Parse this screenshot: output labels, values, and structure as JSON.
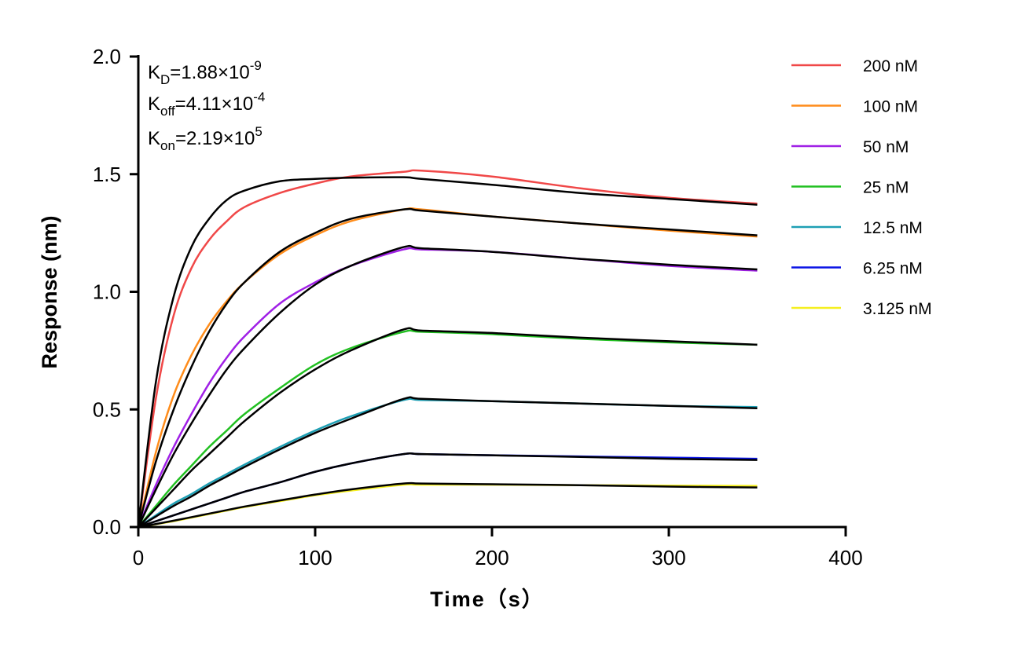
{
  "chart_data": {
    "type": "line",
    "title": "",
    "xlabel": "Time（s）",
    "ylabel": "Response (nm)",
    "xlim": [
      0,
      400
    ],
    "ylim": [
      0,
      2.0
    ],
    "xticks": [
      0,
      100,
      200,
      300,
      400
    ],
    "xtick_labels": [
      "0",
      "100",
      "200",
      "300",
      "400"
    ],
    "yticks": [
      0,
      0.5,
      1.0,
      1.5,
      2.0
    ],
    "ytick_labels": [
      "0.0",
      "0.5",
      "1.0",
      "1.5",
      "2.0"
    ],
    "grid": false,
    "legend_placement": "top-right",
    "fit_color": "#000000",
    "annotations": {
      "kd": {
        "base": "K",
        "sub": "D",
        "text": "=1.88×10",
        "sup": "-9"
      },
      "koff": {
        "base": "K",
        "sub": "off",
        "text": "=4.11×10",
        "sup": "-4"
      },
      "kon": {
        "base": "K",
        "sub": "on",
        "text": "=2.19×10",
        "sup": "5"
      }
    },
    "x": [
      0,
      10,
      20,
      30,
      40,
      50,
      60,
      80,
      100,
      120,
      150,
      160,
      200,
      250,
      300,
      350
    ],
    "series": [
      {
        "name": "200 nM",
        "color": "#f04848",
        "values": [
          0,
          0.55,
          0.9,
          1.1,
          1.22,
          1.3,
          1.36,
          1.42,
          1.46,
          1.49,
          1.51,
          1.515,
          1.49,
          1.44,
          1.4,
          1.375
        ],
        "fit": [
          0,
          0.62,
          0.98,
          1.19,
          1.31,
          1.39,
          1.43,
          1.47,
          1.48,
          1.485,
          1.487,
          1.48,
          1.455,
          1.42,
          1.395,
          1.37
        ]
      },
      {
        "name": "100 nM",
        "color": "#ff8c1a",
        "values": [
          0,
          0.32,
          0.56,
          0.73,
          0.86,
          0.96,
          1.04,
          1.16,
          1.24,
          1.3,
          1.35,
          1.35,
          1.32,
          1.29,
          1.26,
          1.235
        ],
        "fit": [
          0,
          0.28,
          0.5,
          0.68,
          0.83,
          0.95,
          1.04,
          1.17,
          1.25,
          1.31,
          1.35,
          1.345,
          1.32,
          1.29,
          1.265,
          1.24
        ]
      },
      {
        "name": "50 nM",
        "color": "#a020e6",
        "values": [
          0,
          0.18,
          0.34,
          0.48,
          0.61,
          0.72,
          0.81,
          0.95,
          1.04,
          1.11,
          1.18,
          1.18,
          1.17,
          1.14,
          1.11,
          1.09
        ],
        "fit": [
          0,
          0.16,
          0.31,
          0.44,
          0.56,
          0.67,
          0.76,
          0.91,
          1.03,
          1.11,
          1.19,
          1.185,
          1.17,
          1.14,
          1.115,
          1.095
        ]
      },
      {
        "name": "25 nM",
        "color": "#22c022",
        "values": [
          0,
          0.09,
          0.18,
          0.26,
          0.34,
          0.41,
          0.48,
          0.59,
          0.69,
          0.76,
          0.83,
          0.83,
          0.82,
          0.8,
          0.785,
          0.775
        ],
        "fit": [
          0,
          0.08,
          0.16,
          0.24,
          0.31,
          0.38,
          0.45,
          0.57,
          0.67,
          0.75,
          0.84,
          0.835,
          0.825,
          0.805,
          0.79,
          0.775
        ]
      },
      {
        "name": "12.5 nM",
        "color": "#1e9fb4",
        "values": [
          0,
          0.05,
          0.1,
          0.14,
          0.185,
          0.225,
          0.265,
          0.34,
          0.41,
          0.47,
          0.54,
          0.54,
          0.535,
          0.525,
          0.515,
          0.51
        ],
        "fit": [
          0,
          0.045,
          0.09,
          0.13,
          0.175,
          0.215,
          0.255,
          0.33,
          0.4,
          0.46,
          0.545,
          0.545,
          0.535,
          0.525,
          0.515,
          0.505
        ]
      },
      {
        "name": "6.25 nM",
        "color": "#0a14e6",
        "values": [
          0,
          0.025,
          0.05,
          0.075,
          0.1,
          0.125,
          0.15,
          0.19,
          0.235,
          0.27,
          0.31,
          0.31,
          0.305,
          0.3,
          0.295,
          0.29
        ],
        "fit": [
          0,
          0.025,
          0.05,
          0.075,
          0.1,
          0.125,
          0.15,
          0.19,
          0.235,
          0.27,
          0.31,
          0.31,
          0.305,
          0.298,
          0.29,
          0.285
        ]
      },
      {
        "name": "3.125 nM",
        "color": "#f5ef20",
        "values": [
          0,
          0.012,
          0.025,
          0.04,
          0.055,
          0.07,
          0.085,
          0.11,
          0.135,
          0.155,
          0.18,
          0.18,
          0.18,
          0.178,
          0.176,
          0.175
        ],
        "fit": [
          0,
          0.013,
          0.027,
          0.042,
          0.057,
          0.072,
          0.087,
          0.113,
          0.138,
          0.16,
          0.185,
          0.185,
          0.182,
          0.178,
          0.172,
          0.168
        ]
      }
    ]
  }
}
